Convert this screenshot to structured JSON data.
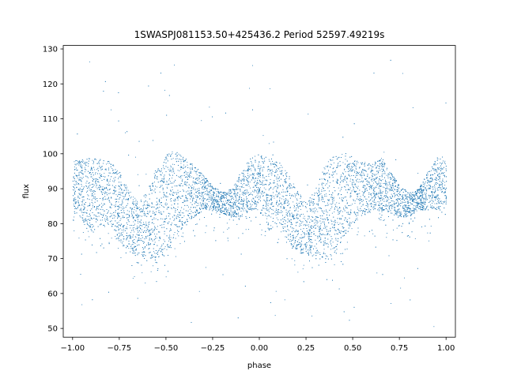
{
  "chart_data": {
    "type": "scatter",
    "title": "1SWASPJ081153.50+425436.2 Period 52597.49219s",
    "xlabel": "phase",
    "ylabel": "flux",
    "xlim": [
      -1.05,
      1.05
    ],
    "ylim": [
      47.5,
      131.0
    ],
    "x_ticks": [
      -1.0,
      -0.75,
      -0.5,
      -0.25,
      0.0,
      0.25,
      0.5,
      0.75,
      1.0
    ],
    "x_tick_labels": [
      "−1.00",
      "−0.75",
      "−0.50",
      "−0.25",
      "0.00",
      "0.25",
      "0.50",
      "0.75",
      "1.00"
    ],
    "y_ticks": [
      50,
      60,
      70,
      80,
      90,
      100,
      110,
      120,
      130
    ],
    "y_tick_labels": [
      "50",
      "60",
      "70",
      "80",
      "90",
      "100",
      "110",
      "120",
      "130"
    ],
    "grid": false,
    "legend": "none",
    "marker_color": "#1f77b4",
    "description_of_series": "phase-folded light curve repeated over two cycles (phase -1 to 1)",
    "series": [
      {
        "values_note": "approximate band envelope of the dense point cloud: upper/lower flux at phase",
        "phase": [
          -1.0,
          -0.9,
          -0.8,
          -0.75,
          -0.7,
          -0.65,
          -0.6,
          -0.55,
          -0.5,
          -0.45,
          -0.4,
          -0.35,
          -0.3,
          -0.25,
          -0.2,
          -0.15,
          -0.1,
          -0.05,
          0.0,
          0.05,
          0.1,
          0.15,
          0.2,
          0.25,
          0.3,
          0.35,
          0.4,
          0.45,
          0.5,
          0.55,
          0.6,
          0.65,
          0.7,
          0.75,
          0.8,
          0.85,
          0.9,
          0.95,
          1.0
        ],
        "upper": [
          98,
          99,
          98,
          95,
          90,
          86,
          90,
          97,
          100,
          101,
          99,
          97,
          94,
          91,
          89,
          90,
          95,
          99,
          100,
          99,
          98,
          95,
          90,
          86,
          90,
          97,
          100,
          101,
          99,
          98,
          97,
          99,
          95,
          91,
          89,
          90,
          95,
          99,
          98
        ],
        "lower": [
          84,
          78,
          80,
          75,
          72,
          71,
          70,
          70,
          71,
          76,
          80,
          82,
          84,
          84,
          83,
          82,
          82,
          84,
          84,
          78,
          80,
          75,
          72,
          71,
          70,
          70,
          71,
          76,
          80,
          82,
          84,
          84,
          83,
          82,
          82,
          84,
          84,
          84,
          84
        ]
      }
    ]
  }
}
